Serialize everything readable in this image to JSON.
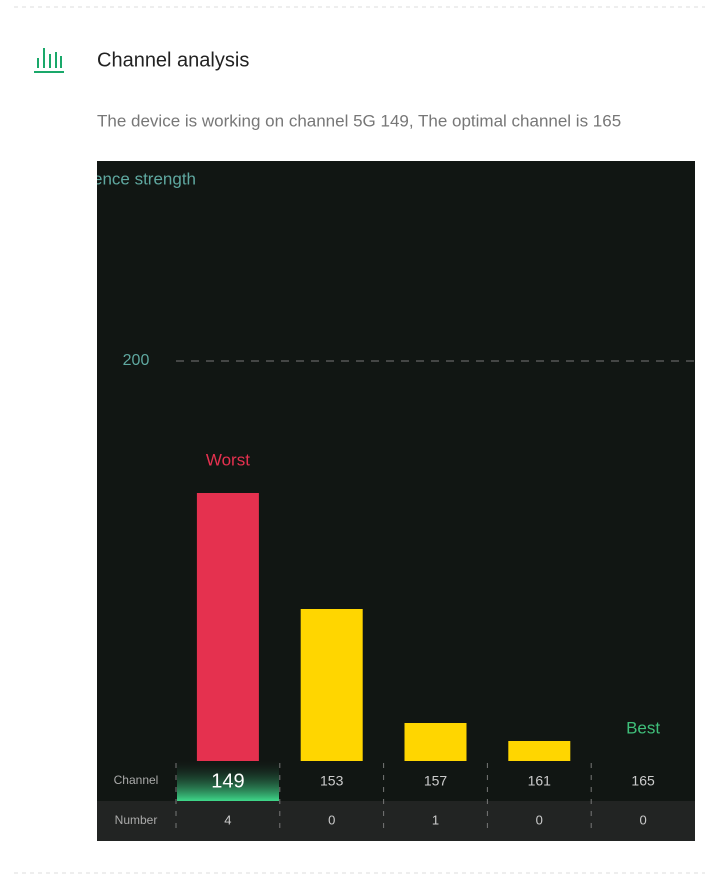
{
  "header": {
    "title": "Channel analysis",
    "description": "The device is working on channel 5G 149, The optimal channel is 165"
  },
  "chart_data": {
    "type": "bar",
    "y_label": "ence strength",
    "categories": [
      "149",
      "153",
      "157",
      "161",
      "165"
    ],
    "values": [
      134,
      76,
      19,
      10,
      0
    ],
    "colors": [
      "#e5314f",
      "#ffd600",
      "#ffd600",
      "#ffd600",
      "#ffd600"
    ],
    "ylim": [
      0,
      300
    ],
    "yticks": [
      200
    ],
    "grid": true,
    "worst_label": "Worst",
    "best_label": "Best",
    "row_labels": [
      "Channel",
      "Number"
    ],
    "counts": [
      4,
      0,
      1,
      0,
      0
    ]
  }
}
